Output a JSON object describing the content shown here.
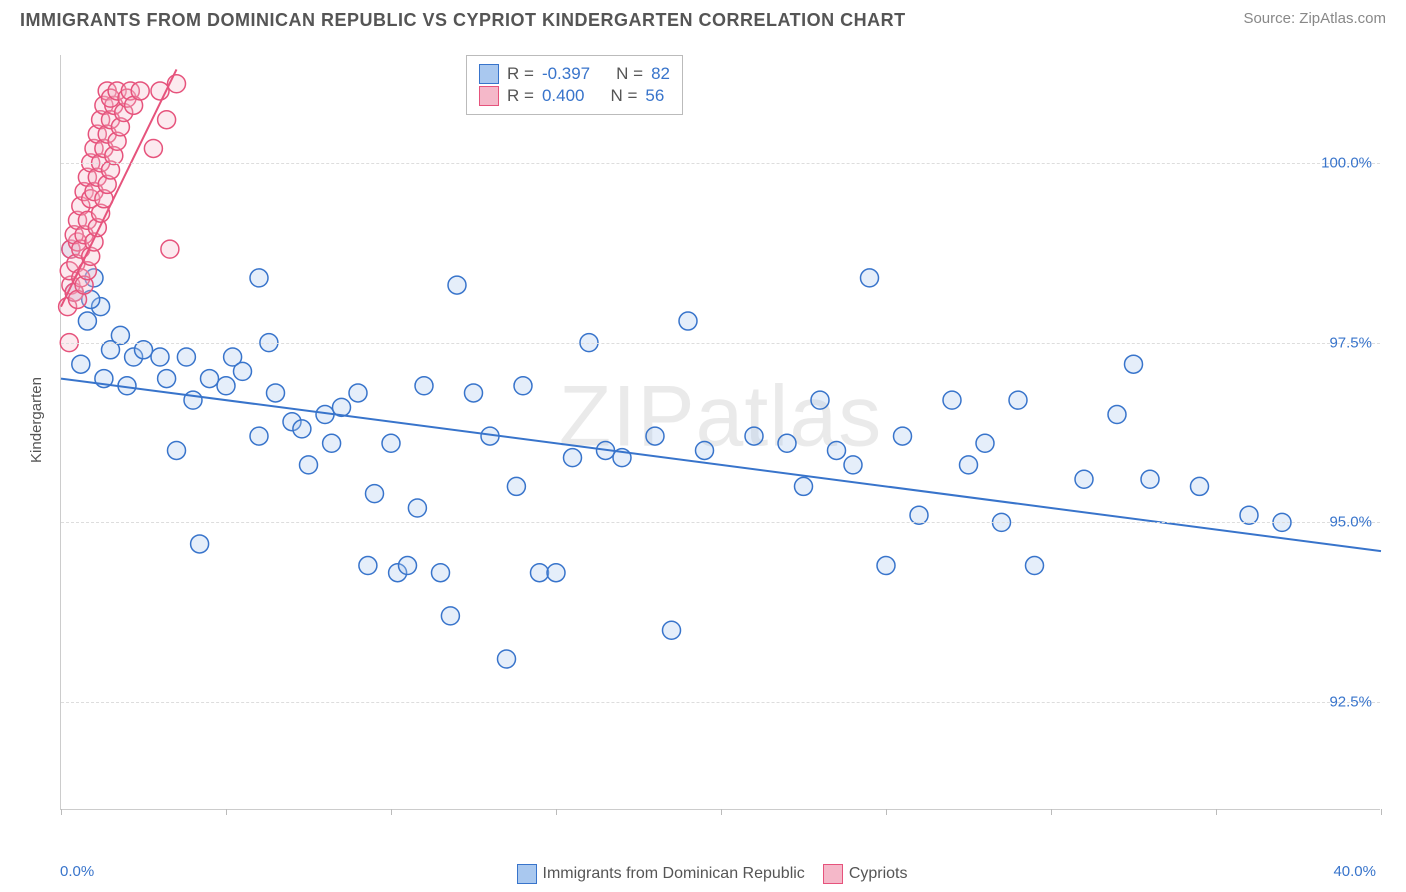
{
  "title": "IMMIGRANTS FROM DOMINICAN REPUBLIC VS CYPRIOT KINDERGARTEN CORRELATION CHART",
  "source": "Source: ZipAtlas.com",
  "watermark": "ZIPatlas",
  "y_axis_label": "Kindergarten",
  "chart": {
    "type": "scatter",
    "background_color": "#ffffff",
    "grid_color": "#dddddd",
    "axis_color": "#cccccc",
    "xlim": [
      0,
      40
    ],
    "ylim": [
      91.0,
      101.5
    ],
    "x_tick_positions": [
      0,
      5,
      10,
      15,
      20,
      25,
      30,
      35,
      40
    ],
    "x_min_label": "0.0%",
    "x_max_label": "40.0%",
    "y_gridlines": [
      92.5,
      95.0,
      97.5,
      100.0
    ],
    "y_tick_labels": [
      "92.5%",
      "95.0%",
      "97.5%",
      "100.0%"
    ],
    "marker_radius": 9,
    "marker_stroke_width": 1.5,
    "marker_fill_opacity": 0.3,
    "trend_line_width": 2
  },
  "legend_top": [
    {
      "swatch_fill": "#a9c8ef",
      "swatch_stroke": "#3874cb",
      "r_label": "R =",
      "r_value": "-0.397",
      "n_label": "N =",
      "n_value": "82"
    },
    {
      "swatch_fill": "#f5b8c9",
      "swatch_stroke": "#e6537c",
      "r_label": "R =",
      "r_value": "0.400",
      "n_label": "N =",
      "n_value": "56"
    }
  ],
  "legend_bottom": [
    {
      "swatch_fill": "#a9c8ef",
      "swatch_stroke": "#3874cb",
      "label": "Immigrants from Dominican Republic"
    },
    {
      "swatch_fill": "#f5b8c9",
      "swatch_stroke": "#e6537c",
      "label": "Cypriots"
    }
  ],
  "series": [
    {
      "name": "Immigrants from Dominican Republic",
      "color_stroke": "#3874cb",
      "color_fill": "#a9c8ef",
      "trend": {
        "x1": 0,
        "y1": 97.0,
        "x2": 40,
        "y2": 94.6
      },
      "points": [
        [
          0.4,
          98.2
        ],
        [
          0.8,
          97.8
        ],
        [
          0.6,
          97.2
        ],
        [
          1.2,
          98.0
        ],
        [
          1.5,
          97.4
        ],
        [
          1.0,
          98.4
        ],
        [
          0.3,
          98.8
        ],
        [
          0.9,
          98.1
        ],
        [
          1.3,
          97.0
        ],
        [
          1.8,
          97.6
        ],
        [
          2.2,
          97.3
        ],
        [
          2.0,
          96.9
        ],
        [
          2.5,
          97.4
        ],
        [
          3.0,
          97.3
        ],
        [
          3.2,
          97.0
        ],
        [
          3.5,
          96.0
        ],
        [
          3.8,
          97.3
        ],
        [
          4.0,
          96.7
        ],
        [
          4.2,
          94.7
        ],
        [
          4.5,
          97.0
        ],
        [
          5.0,
          96.9
        ],
        [
          5.2,
          97.3
        ],
        [
          5.5,
          97.1
        ],
        [
          6.0,
          98.4
        ],
        [
          6.0,
          96.2
        ],
        [
          6.3,
          97.5
        ],
        [
          6.5,
          96.8
        ],
        [
          7.0,
          96.4
        ],
        [
          7.3,
          96.3
        ],
        [
          7.5,
          95.8
        ],
        [
          8.0,
          96.5
        ],
        [
          8.2,
          96.1
        ],
        [
          8.5,
          96.6
        ],
        [
          9.0,
          96.8
        ],
        [
          9.3,
          94.4
        ],
        [
          9.5,
          95.4
        ],
        [
          10.0,
          96.1
        ],
        [
          10.2,
          94.3
        ],
        [
          10.5,
          94.4
        ],
        [
          10.8,
          95.2
        ],
        [
          11.0,
          96.9
        ],
        [
          11.5,
          94.3
        ],
        [
          11.8,
          93.7
        ],
        [
          12.0,
          98.3
        ],
        [
          12.5,
          96.8
        ],
        [
          13.0,
          96.2
        ],
        [
          13.5,
          93.1
        ],
        [
          13.8,
          95.5
        ],
        [
          14.0,
          96.9
        ],
        [
          14.5,
          94.3
        ],
        [
          15.0,
          94.3
        ],
        [
          15.5,
          95.9
        ],
        [
          16.0,
          97.5
        ],
        [
          16.5,
          96.0
        ],
        [
          17.0,
          95.9
        ],
        [
          18.0,
          96.2
        ],
        [
          18.5,
          93.5
        ],
        [
          19.0,
          97.8
        ],
        [
          19.5,
          96.0
        ],
        [
          21.0,
          96.2
        ],
        [
          22.0,
          96.1
        ],
        [
          22.5,
          95.5
        ],
        [
          23.0,
          96.7
        ],
        [
          23.5,
          96.0
        ],
        [
          24.0,
          95.8
        ],
        [
          24.5,
          98.4
        ],
        [
          25.0,
          94.4
        ],
        [
          25.5,
          96.2
        ],
        [
          26.0,
          95.1
        ],
        [
          27.0,
          96.7
        ],
        [
          27.5,
          95.8
        ],
        [
          28.0,
          96.1
        ],
        [
          28.5,
          95.0
        ],
        [
          29.0,
          96.7
        ],
        [
          29.5,
          94.4
        ],
        [
          31.0,
          95.6
        ],
        [
          32.0,
          96.5
        ],
        [
          32.5,
          97.2
        ],
        [
          33.0,
          95.6
        ],
        [
          34.5,
          95.5
        ],
        [
          36.0,
          95.1
        ],
        [
          37.0,
          95.0
        ]
      ]
    },
    {
      "name": "Cypriots",
      "color_stroke": "#e6537c",
      "color_fill": "#f5b8c9",
      "trend": {
        "x1": 0,
        "y1": 98.0,
        "x2": 3.5,
        "y2": 101.3
      },
      "points": [
        [
          0.2,
          98.0
        ],
        [
          0.3,
          98.3
        ],
        [
          0.25,
          98.5
        ],
        [
          0.4,
          98.2
        ],
        [
          0.3,
          98.8
        ],
        [
          0.5,
          98.1
        ],
        [
          0.45,
          98.6
        ],
        [
          0.6,
          98.4
        ],
        [
          0.5,
          98.9
        ],
        [
          0.7,
          98.3
        ],
        [
          0.4,
          99.0
        ],
        [
          0.6,
          98.8
        ],
        [
          0.8,
          98.5
        ],
        [
          0.5,
          99.2
        ],
        [
          0.7,
          99.0
        ],
        [
          0.9,
          98.7
        ],
        [
          0.6,
          99.4
        ],
        [
          0.8,
          99.2
        ],
        [
          1.0,
          98.9
        ],
        [
          0.7,
          99.6
        ],
        [
          0.9,
          99.5
        ],
        [
          1.1,
          99.1
        ],
        [
          0.8,
          99.8
        ],
        [
          1.0,
          99.6
        ],
        [
          1.2,
          99.3
        ],
        [
          0.9,
          100.0
        ],
        [
          1.1,
          99.8
        ],
        [
          1.3,
          99.5
        ],
        [
          1.0,
          100.2
        ],
        [
          1.2,
          100.0
        ],
        [
          1.4,
          99.7
        ],
        [
          1.1,
          100.4
        ],
        [
          1.3,
          100.2
        ],
        [
          1.5,
          99.9
        ],
        [
          1.2,
          100.6
        ],
        [
          1.4,
          100.4
        ],
        [
          1.6,
          100.1
        ],
        [
          1.3,
          100.8
        ],
        [
          1.5,
          100.6
        ],
        [
          1.7,
          100.3
        ],
        [
          1.4,
          101.0
        ],
        [
          1.6,
          100.8
        ],
        [
          1.8,
          100.5
        ],
        [
          1.5,
          100.9
        ],
        [
          1.7,
          101.0
        ],
        [
          1.9,
          100.7
        ],
        [
          2.0,
          100.9
        ],
        [
          2.1,
          101.0
        ],
        [
          2.2,
          100.8
        ],
        [
          2.4,
          101.0
        ],
        [
          2.8,
          100.2
        ],
        [
          3.0,
          101.0
        ],
        [
          3.2,
          100.6
        ],
        [
          3.5,
          101.1
        ],
        [
          3.3,
          98.8
        ],
        [
          0.25,
          97.5
        ]
      ]
    }
  ]
}
